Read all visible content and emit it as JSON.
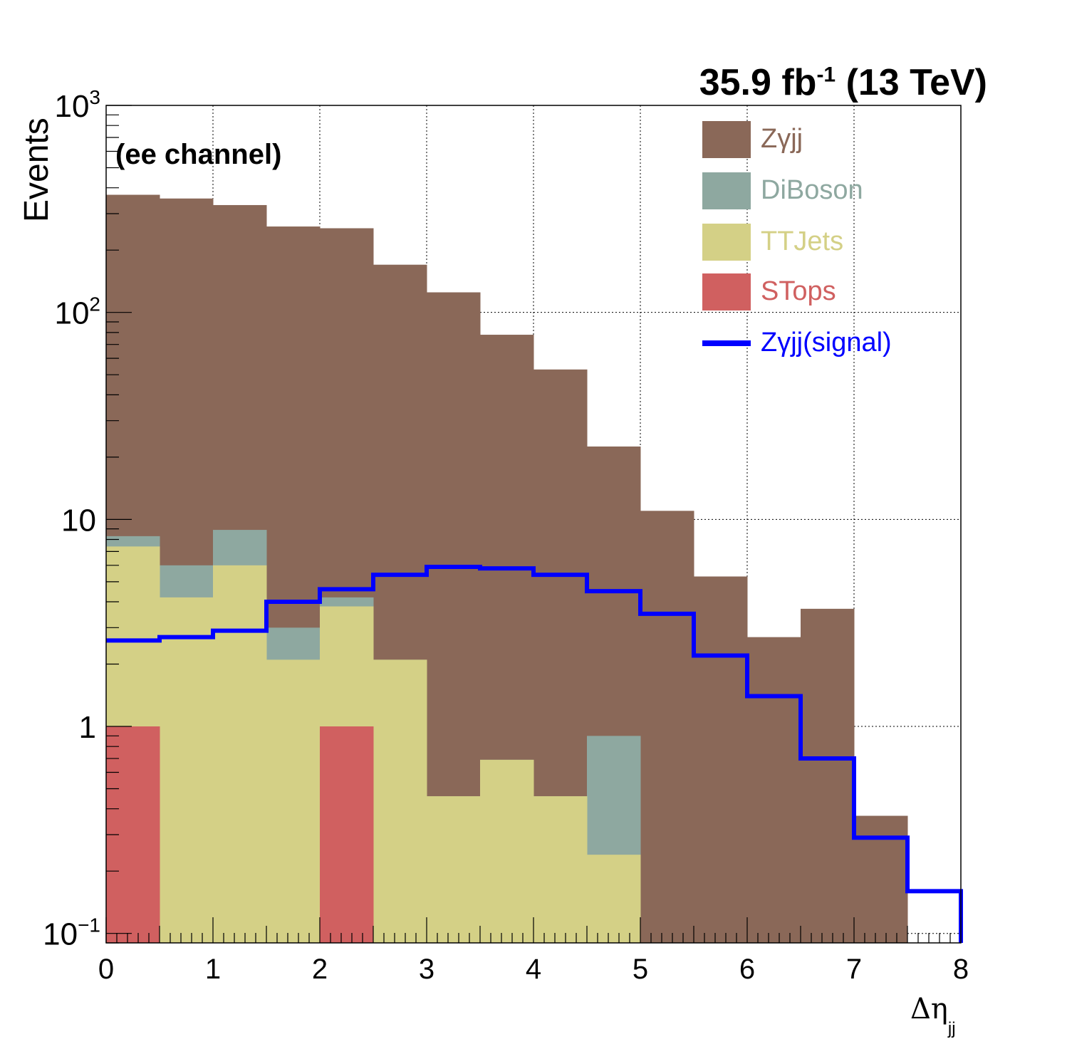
{
  "header": {
    "lumi_value": "35.9 fb",
    "lumi_exp": "-1",
    "lumi_energy": " (13 TeV)"
  },
  "annotation": "(ee channel)",
  "chart_data": {
    "type": "bar",
    "stacked": true,
    "log_y": true,
    "xlabel": "Δη",
    "xlabel_sub": "jj",
    "ylabel": "Events",
    "xlim": [
      0,
      8
    ],
    "ylim": [
      0.09,
      1000
    ],
    "grid": true,
    "legend_position": "top-right",
    "bin_edges": [
      0,
      0.5,
      1,
      1.5,
      2,
      2.5,
      3,
      3.5,
      4,
      4.5,
      5,
      5.5,
      6,
      6.5,
      7,
      7.5,
      8
    ],
    "x_ticks": [
      "0",
      "1",
      "2",
      "3",
      "4",
      "5",
      "6",
      "7",
      "8"
    ],
    "y_ticks": [
      {
        "value": 0.1,
        "base": "10",
        "exp": "−1"
      },
      {
        "value": 1,
        "base": "1",
        "exp": ""
      },
      {
        "value": 10,
        "base": "10",
        "exp": ""
      },
      {
        "value": 100,
        "base": "10",
        "exp": "2"
      },
      {
        "value": 1000,
        "base": "10",
        "exp": "3"
      }
    ],
    "stack_order_bottom_to_top": [
      "STops",
      "TTJets",
      "DiBoson",
      "Zγjj"
    ],
    "series": [
      {
        "name": "Zγjj",
        "color": "#8a6858",
        "cumulative_top": [
          370,
          355,
          330,
          260,
          255,
          170,
          125,
          78,
          53,
          22.5,
          11,
          5.3,
          2.7,
          3.7,
          0.37,
          0
        ]
      },
      {
        "name": "DiBoson",
        "color": "#8ea8a0",
        "cumulative_top": [
          8.3,
          6.0,
          8.9,
          3.0,
          4.2,
          2.1,
          0.46,
          0.69,
          0.46,
          0.9,
          0,
          0,
          0,
          0,
          0,
          0
        ]
      },
      {
        "name": "TTJets",
        "color": "#d4d086",
        "cumulative_top": [
          7.4,
          4.2,
          6.0,
          2.1,
          3.8,
          2.1,
          0.46,
          0.69,
          0.46,
          0.24,
          0,
          0,
          0,
          0,
          0,
          0
        ]
      },
      {
        "name": "STops",
        "color": "#d06060",
        "cumulative_top": [
          1.0,
          0,
          0,
          0,
          1.0,
          0,
          0,
          0,
          0,
          0,
          0,
          0,
          0,
          0,
          0,
          0
        ]
      }
    ],
    "signal": {
      "name": "Zγjj(signal)",
      "color": "#0000ff",
      "values": [
        2.6,
        2.7,
        2.9,
        4.0,
        4.6,
        5.4,
        5.9,
        5.8,
        5.4,
        4.5,
        3.5,
        2.2,
        1.4,
        0.7,
        0.29,
        0.16
      ]
    }
  }
}
